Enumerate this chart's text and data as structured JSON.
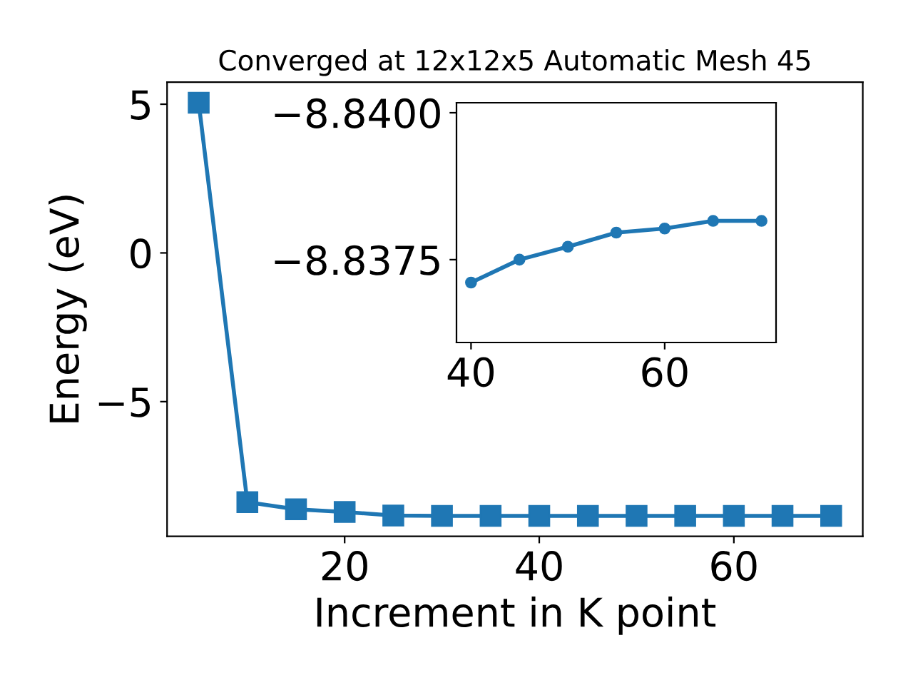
{
  "chart_data": [
    {
      "type": "line",
      "title": "Converged at 12x12x5 Automatic Mesh 45",
      "xlabel": "Increment in K point",
      "ylabel": "Energy (eV)",
      "x": [
        5,
        10,
        15,
        20,
        25,
        30,
        35,
        40,
        45,
        50,
        55,
        60,
        65,
        70
      ],
      "series": [
        {
          "color": "#1f77b4",
          "values": [
            5.05,
            -8.38,
            -8.62,
            -8.71,
            -8.83,
            -8.84,
            -8.84,
            -8.84,
            -8.84,
            -8.84,
            -8.84,
            -8.84,
            -8.84,
            -8.84
          ]
        }
      ],
      "marker": "square",
      "line_style": "solid",
      "xlim": [
        1.75,
        73.25
      ],
      "ylim": [
        -9.53,
        5.74
      ],
      "xticks": [
        20,
        40,
        60
      ],
      "yticks": [
        -5,
        0,
        5
      ],
      "grid": false,
      "legend": false
    },
    {
      "type": "line",
      "x": [
        40,
        45,
        50,
        55,
        60,
        65,
        70
      ],
      "series": [
        {
          "color": "#1f77b4",
          "values": [
            -8.83711,
            -8.8375,
            -8.83772,
            -8.83796,
            -8.83803,
            -8.83816,
            -8.83816
          ]
        }
      ],
      "marker": "circle",
      "line_style": "solid",
      "xlim": [
        38.5,
        71.5
      ],
      "ylim": [
        -8.83609,
        -8.84017
      ],
      "xticks": [
        40,
        60
      ],
      "yticks": [
        {
          "value": -8.84,
          "label": "−8.8400"
        },
        {
          "value": -8.8375,
          "label": "−8.8375"
        }
      ],
      "grid": false,
      "legend": false
    }
  ]
}
